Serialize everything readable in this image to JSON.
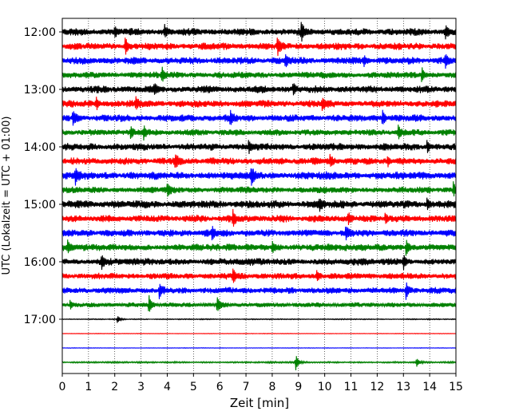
{
  "chart_data": {
    "type": "line",
    "title": "",
    "xlabel": "Zeit  [min]",
    "ylabel": "UTC (Lokalzeit = UTC + 01:00)",
    "xlim": [
      0,
      15
    ],
    "x_ticks": [
      0,
      1,
      2,
      3,
      4,
      5,
      6,
      7,
      8,
      9,
      10,
      11,
      12,
      13,
      14,
      15
    ],
    "y_ticks": [
      "12:00",
      "13:00",
      "14:00",
      "15:00",
      "16:00",
      "17:00"
    ],
    "grid": "vertical dotted",
    "trace_interval_min": 15,
    "series": [
      {
        "start": "12:00",
        "color": "#000000",
        "amplitude": 0.9,
        "events": [
          {
            "t": 2.0,
            "a": 0.5
          },
          {
            "t": 3.9,
            "a": 0.6
          },
          {
            "t": 9.1,
            "a": 1.0
          },
          {
            "t": 14.6,
            "a": 0.6
          }
        ]
      },
      {
        "start": "12:15",
        "color": "#ff0000",
        "amplitude": 0.9,
        "events": [
          {
            "t": 2.4,
            "a": 0.9
          },
          {
            "t": 8.2,
            "a": 0.9
          }
        ]
      },
      {
        "start": "12:30",
        "color": "#0000ff",
        "amplitude": 0.9,
        "events": [
          {
            "t": 8.5,
            "a": 0.7
          },
          {
            "t": 11.5,
            "a": 0.5
          },
          {
            "t": 14.6,
            "a": 0.6
          }
        ]
      },
      {
        "start": "12:45",
        "color": "#008000",
        "amplitude": 0.8,
        "events": [
          {
            "t": 3.8,
            "a": 0.8
          },
          {
            "t": 13.7,
            "a": 0.8
          }
        ]
      },
      {
        "start": "13:00",
        "color": "#000000",
        "amplitude": 0.9,
        "events": [
          {
            "t": 3.5,
            "a": 0.5
          },
          {
            "t": 8.8,
            "a": 0.6
          }
        ]
      },
      {
        "start": "13:15",
        "color": "#ff0000",
        "amplitude": 0.9,
        "events": [
          {
            "t": 1.3,
            "a": 0.6
          },
          {
            "t": 2.8,
            "a": 0.7
          },
          {
            "t": 9.9,
            "a": 0.7
          }
        ]
      },
      {
        "start": "13:30",
        "color": "#0000ff",
        "amplitude": 0.9,
        "events": [
          {
            "t": 0.4,
            "a": 0.8
          },
          {
            "t": 6.4,
            "a": 0.8
          },
          {
            "t": 12.2,
            "a": 0.8
          }
        ]
      },
      {
        "start": "13:45",
        "color": "#008000",
        "amplitude": 0.8,
        "events": [
          {
            "t": 2.6,
            "a": 0.6
          },
          {
            "t": 3.1,
            "a": 0.7
          },
          {
            "t": 12.8,
            "a": 0.8
          }
        ]
      },
      {
        "start": "14:00",
        "color": "#000000",
        "amplitude": 0.9,
        "events": [
          {
            "t": 7.1,
            "a": 0.7
          },
          {
            "t": 13.9,
            "a": 0.6
          }
        ]
      },
      {
        "start": "14:15",
        "color": "#ff0000",
        "amplitude": 0.9,
        "events": [
          {
            "t": 4.3,
            "a": 0.7
          },
          {
            "t": 10.2,
            "a": 0.6
          },
          {
            "t": 12.4,
            "a": 0.5
          }
        ]
      },
      {
        "start": "14:30",
        "color": "#0000ff",
        "amplitude": 1.0,
        "events": [
          {
            "t": 0.5,
            "a": 0.9
          },
          {
            "t": 7.2,
            "a": 0.9
          }
        ]
      },
      {
        "start": "14:45",
        "color": "#008000",
        "amplitude": 0.8,
        "events": [
          {
            "t": 4.0,
            "a": 0.6
          },
          {
            "t": 14.9,
            "a": 0.8
          }
        ]
      },
      {
        "start": "15:00",
        "color": "#000000",
        "amplitude": 1.0,
        "events": [
          {
            "t": 9.8,
            "a": 0.7
          },
          {
            "t": 13.9,
            "a": 0.6
          }
        ]
      },
      {
        "start": "15:15",
        "color": "#ff0000",
        "amplitude": 0.9,
        "events": [
          {
            "t": 6.5,
            "a": 0.8
          },
          {
            "t": 10.9,
            "a": 0.6
          },
          {
            "t": 12.3,
            "a": 0.6
          }
        ]
      },
      {
        "start": "15:30",
        "color": "#0000ff",
        "amplitude": 0.9,
        "events": [
          {
            "t": 5.7,
            "a": 0.7
          },
          {
            "t": 10.8,
            "a": 0.6
          }
        ]
      },
      {
        "start": "15:45",
        "color": "#008000",
        "amplitude": 0.9,
        "events": [
          {
            "t": 0.2,
            "a": 0.6
          },
          {
            "t": 8.0,
            "a": 0.6
          },
          {
            "t": 13.1,
            "a": 0.9
          }
        ]
      },
      {
        "start": "16:00",
        "color": "#000000",
        "amplitude": 0.9,
        "events": [
          {
            "t": 1.5,
            "a": 0.8
          },
          {
            "t": 13.0,
            "a": 0.7
          }
        ]
      },
      {
        "start": "16:15",
        "color": "#ff0000",
        "amplitude": 0.8,
        "events": [
          {
            "t": 6.5,
            "a": 0.8
          },
          {
            "t": 9.7,
            "a": 0.6
          }
        ]
      },
      {
        "start": "16:30",
        "color": "#0000ff",
        "amplitude": 0.8,
        "events": [
          {
            "t": 3.7,
            "a": 0.8
          },
          {
            "t": 13.1,
            "a": 0.9
          }
        ]
      },
      {
        "start": "16:45",
        "color": "#008000",
        "amplitude": 0.6,
        "events": [
          {
            "t": 0.3,
            "a": 0.5
          },
          {
            "t": 3.3,
            "a": 1.0
          },
          {
            "t": 5.9,
            "a": 0.9
          }
        ]
      },
      {
        "start": "17:00",
        "color": "#000000",
        "amplitude": 0.12,
        "events": [
          {
            "t": 2.1,
            "a": 0.4
          }
        ]
      },
      {
        "start": "17:15",
        "color": "#ff0000",
        "amplitude": 0.06,
        "events": []
      },
      {
        "start": "17:30",
        "color": "#0000ff",
        "amplitude": 0.06,
        "events": []
      },
      {
        "start": "17:45",
        "color": "#008000",
        "amplitude": 0.2,
        "events": [
          {
            "t": 8.9,
            "a": 0.9
          },
          {
            "t": 13.5,
            "a": 0.5
          }
        ]
      }
    ]
  }
}
